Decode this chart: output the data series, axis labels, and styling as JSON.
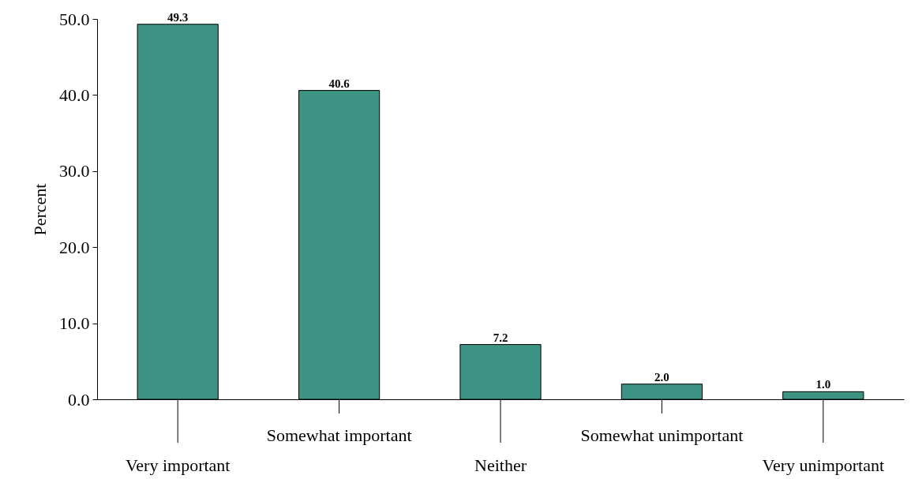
{
  "chart_data": {
    "type": "bar",
    "ylabel": "Percent",
    "categories": [
      "Very important",
      "Somewhat important",
      "Neither",
      "Somewhat unimportant",
      "Very unimportant"
    ],
    "values": [
      49.3,
      40.6,
      7.2,
      2.0,
      1.0
    ],
    "value_labels": [
      "49.3",
      "40.6",
      "7.2",
      "2.0",
      "1.0"
    ],
    "color": "#3d9384",
    "ylim": [
      0,
      50
    ],
    "yticks": [
      {
        "value": 0,
        "label": "0.0"
      },
      {
        "value": 10,
        "label": "10.0"
      },
      {
        "value": 20,
        "label": "20.0"
      },
      {
        "value": 30,
        "label": "30.0"
      },
      {
        "value": 40,
        "label": "40.0"
      },
      {
        "value": 50,
        "label": "50.0"
      }
    ],
    "grid": false
  }
}
